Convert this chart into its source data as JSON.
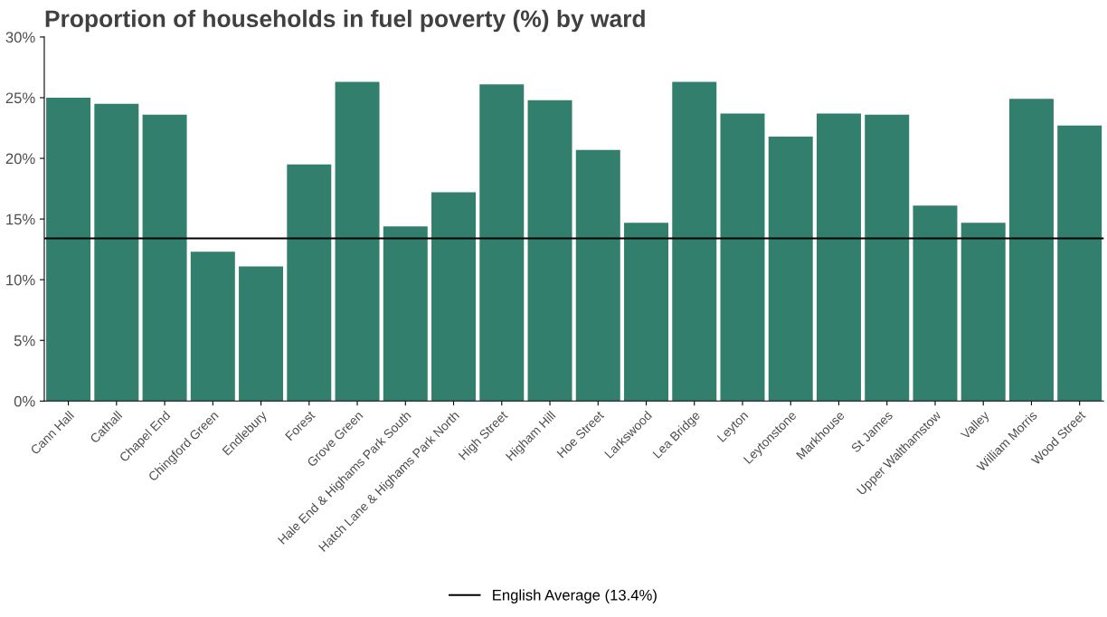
{
  "chart_data": {
    "type": "bar",
    "title": "Proportion of households in fuel poverty (%) by ward",
    "categories": [
      "Cann Hall",
      "Cathall",
      "Chapel End",
      "Chingford Green",
      "Endlebury",
      "Forest",
      "Grove Green",
      "Hale End & Highams Park South",
      "Hatch Lane & Highams Park North",
      "High Street",
      "Higham Hill",
      "Hoe Street",
      "Larkswood",
      "Lea Bridge",
      "Leyton",
      "Leytonstone",
      "Markhouse",
      "St James",
      "Upper Walthamstow",
      "Valley",
      "William Morris",
      "Wood Street"
    ],
    "values": [
      25.0,
      24.5,
      23.6,
      12.3,
      11.1,
      19.5,
      26.3,
      14.4,
      17.2,
      26.1,
      24.8,
      20.7,
      14.7,
      26.3,
      23.7,
      21.8,
      23.7,
      23.6,
      16.1,
      14.7,
      24.9,
      22.7
    ],
    "color": "#327f6e",
    "ylim": [
      0,
      30
    ],
    "yticks": [
      {
        "value": 0,
        "label": "0%"
      },
      {
        "value": 5,
        "label": "5%"
      },
      {
        "value": 10,
        "label": "10%"
      },
      {
        "value": 15,
        "label": "15%"
      },
      {
        "value": 20,
        "label": "20%"
      },
      {
        "value": 25,
        "label": "25%"
      },
      {
        "value": 30,
        "label": "30%"
      }
    ],
    "ref_lines": [
      {
        "axis": "y",
        "value": 13.4,
        "label": "English Average (13.4%)",
        "color": "#000000"
      }
    ],
    "legend": "bottom",
    "grid": false
  }
}
